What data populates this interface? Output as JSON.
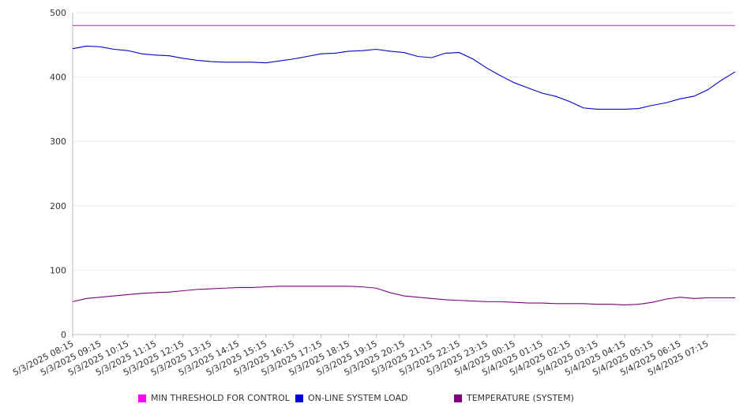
{
  "chart_data": {
    "type": "line",
    "title": "",
    "xlabel": "",
    "ylabel": "",
    "ylim": [
      0,
      500
    ],
    "yticks": [
      0,
      100,
      200,
      300,
      400,
      500
    ],
    "grid": true,
    "legend_position": "bottom",
    "x_tick_labels": [
      "5/3/2025 08:15",
      "5/3/2025 09:15",
      "5/3/2025 10:15",
      "5/3/2025 11:15",
      "5/3/2025 12:15",
      "5/3/2025 13:15",
      "5/3/2025 14:15",
      "5/3/2025 15:15",
      "5/3/2025 16:15",
      "5/3/2025 17:15",
      "5/3/2025 18:15",
      "5/3/2025 19:15",
      "5/3/2025 20:15",
      "5/3/2025 21:15",
      "5/3/2025 22:15",
      "5/3/2025 23:15",
      "5/4/2025 00:15",
      "5/4/2025 01:15",
      "5/4/2025 02:15",
      "5/4/2025 03:15",
      "5/4/2025 04:15",
      "5/4/2025 05:15",
      "5/4/2025 06:15",
      "5/4/2025 07:15"
    ],
    "x": [
      "5/3/2025 08:15",
      "5/3/2025 08:45",
      "5/3/2025 09:15",
      "5/3/2025 09:45",
      "5/3/2025 10:15",
      "5/3/2025 10:45",
      "5/3/2025 11:15",
      "5/3/2025 11:45",
      "5/3/2025 12:15",
      "5/3/2025 12:45",
      "5/3/2025 13:15",
      "5/3/2025 13:45",
      "5/3/2025 14:15",
      "5/3/2025 14:45",
      "5/3/2025 15:15",
      "5/3/2025 15:45",
      "5/3/2025 16:15",
      "5/3/2025 16:45",
      "5/3/2025 17:15",
      "5/3/2025 17:45",
      "5/3/2025 18:15",
      "5/3/2025 18:45",
      "5/3/2025 19:15",
      "5/3/2025 19:45",
      "5/3/2025 20:15",
      "5/3/2025 20:45",
      "5/3/2025 21:15",
      "5/3/2025 21:45",
      "5/3/2025 22:15",
      "5/3/2025 22:45",
      "5/3/2025 23:15",
      "5/3/2025 23:45",
      "5/4/2025 00:15",
      "5/4/2025 00:45",
      "5/4/2025 01:15",
      "5/4/2025 01:45",
      "5/4/2025 02:15",
      "5/4/2025 02:45",
      "5/4/2025 03:15",
      "5/4/2025 03:45",
      "5/4/2025 04:15",
      "5/4/2025 04:45",
      "5/4/2025 05:15",
      "5/4/2025 05:45",
      "5/4/2025 06:15",
      "5/4/2025 06:45",
      "5/4/2025 07:15",
      "5/4/2025 07:45",
      "5/4/2025 08:00"
    ],
    "series": [
      {
        "name": "MIN THRESHOLD FOR CONTROL",
        "color": "#cc33cc",
        "values": [
          480,
          480,
          480,
          480,
          480,
          480,
          480,
          480,
          480,
          480,
          480,
          480,
          480,
          480,
          480,
          480,
          480,
          480,
          480,
          480,
          480,
          480,
          480,
          480,
          480,
          480,
          480,
          480,
          480,
          480,
          480,
          480,
          480,
          480,
          480,
          480,
          480,
          480,
          480,
          480,
          480,
          480,
          480,
          480,
          480,
          480,
          480,
          480,
          480
        ]
      },
      {
        "name": "ON-LINE SYSTEM LOAD",
        "color": "#0000cc",
        "values": [
          444,
          448,
          447,
          443,
          441,
          436,
          434,
          433,
          429,
          426,
          424,
          423,
          423,
          423,
          422,
          425,
          428,
          432,
          436,
          437,
          440,
          441,
          443,
          440,
          438,
          432,
          430,
          437,
          438,
          428,
          414,
          402,
          391,
          383,
          375,
          370,
          362,
          352,
          350,
          350,
          350,
          351,
          356,
          360,
          366,
          370,
          380,
          395,
          408
        ]
      },
      {
        "name": "TEMPERATURE (SYSTEM)",
        "color": "#800080",
        "values": [
          51,
          56,
          58,
          60,
          62,
          64,
          65,
          66,
          68,
          70,
          71,
          72,
          73,
          73,
          74,
          75,
          75,
          75,
          75,
          75,
          75,
          74,
          72,
          65,
          60,
          58,
          56,
          54,
          53,
          52,
          51,
          51,
          50,
          49,
          49,
          48,
          48,
          48,
          47,
          47,
          46,
          47,
          50,
          55,
          58,
          56,
          57,
          57,
          57
        ]
      }
    ]
  }
}
